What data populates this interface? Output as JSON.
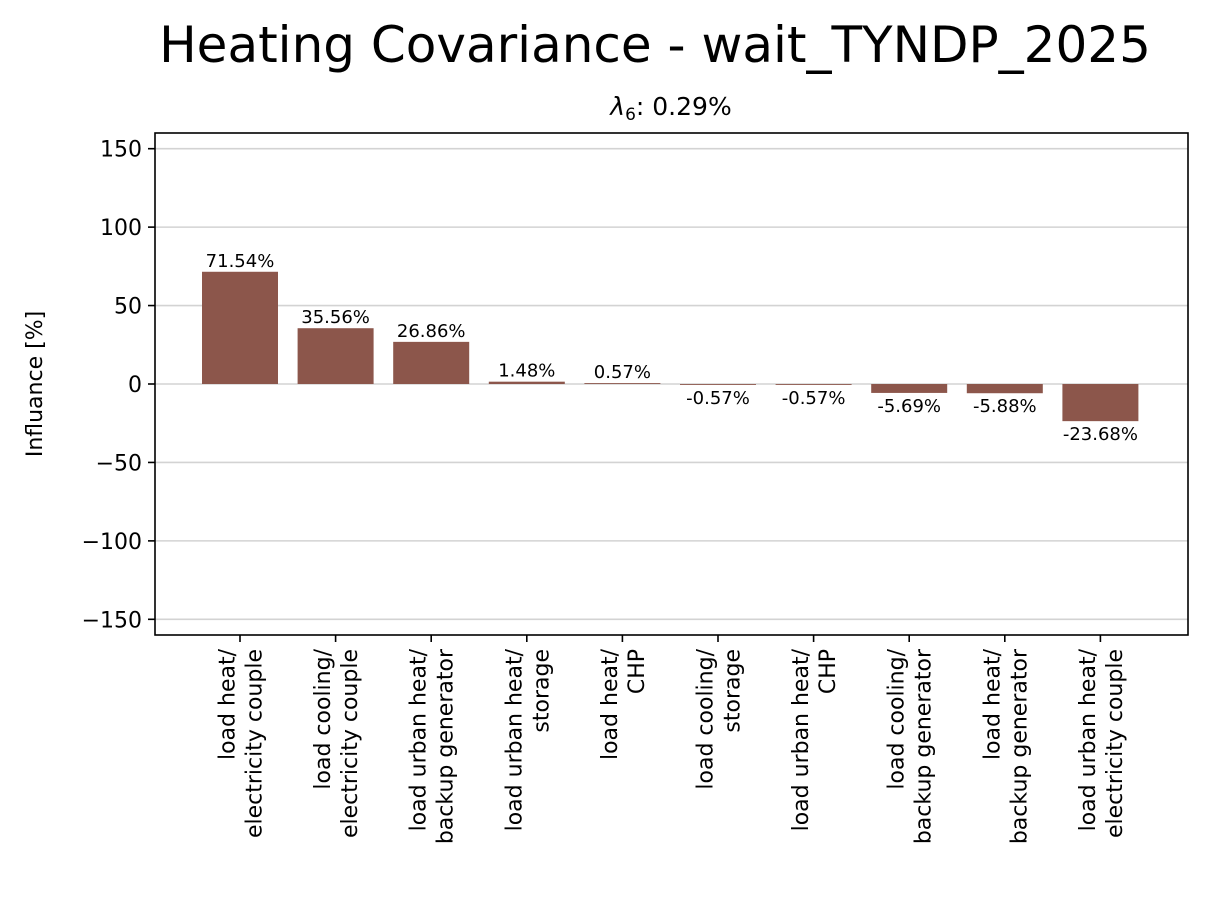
{
  "chart_data": {
    "type": "bar",
    "title": "Heating Covariance - wait_TYNDP_2025",
    "subtitle_symbol": "λ",
    "subtitle_subscript": "6",
    "subtitle_value": ": 0.29%",
    "xlabel": "",
    "ylabel": "Influance [%]",
    "ylim": [
      -160,
      160
    ],
    "yticks": [
      150,
      100,
      50,
      0,
      -50,
      -100,
      -150
    ],
    "ytick_labels": [
      "150",
      "100",
      "50",
      "0",
      "−50",
      "−100",
      "−150"
    ],
    "grid": "horizontal",
    "bar_color": "#8c564b",
    "categories": [
      [
        "load heat/",
        "electricity couple"
      ],
      [
        "load cooling/",
        "electricity couple"
      ],
      [
        "load urban heat/",
        "backup generator"
      ],
      [
        "load urban heat/",
        "storage"
      ],
      [
        "load heat/",
        "CHP"
      ],
      [
        "load cooling/",
        "storage"
      ],
      [
        "load urban heat/",
        "CHP"
      ],
      [
        "load cooling/",
        "backup generator"
      ],
      [
        "load heat/",
        "backup generator"
      ],
      [
        "load urban heat/",
        "electricity couple"
      ]
    ],
    "values": [
      71.54,
      35.56,
      26.86,
      1.48,
      0.57,
      -0.57,
      -0.57,
      -5.69,
      -5.88,
      -23.68
    ],
    "value_labels": [
      "71.54%",
      "35.56%",
      "26.86%",
      "1.48%",
      "0.57%",
      "-0.57%",
      "-0.57%",
      "-5.69%",
      "-5.88%",
      "-23.68%"
    ]
  }
}
